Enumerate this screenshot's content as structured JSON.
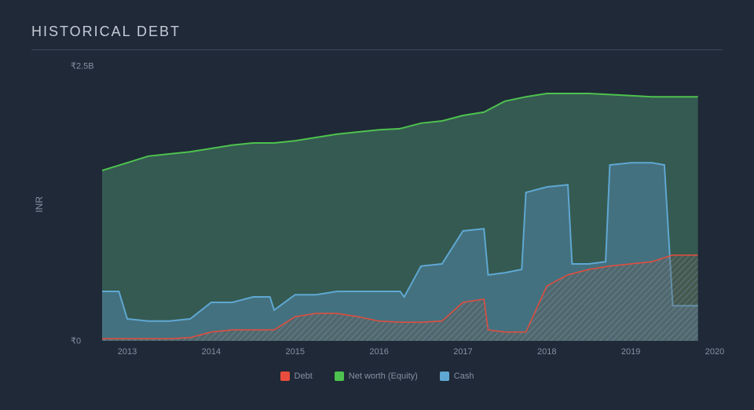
{
  "title": "HISTORICAL DEBT",
  "chart": {
    "type": "area",
    "background_color": "#1f2937",
    "grid_color": "#3d4a5e",
    "title_color": "#c4cbd6",
    "axis_text_color": "#8590a4",
    "title_fontsize": 18,
    "letter_spacing": 2,
    "y_label": "INR",
    "y_ticks": [
      {
        "value": 0,
        "label": "₹0"
      },
      {
        "value": 2.5,
        "label": "₹2.5B"
      }
    ],
    "ylim": [
      0,
      2.5
    ],
    "x_ticks": [
      2013,
      2014,
      2015,
      2016,
      2017,
      2018,
      2019,
      2020
    ],
    "xlim": [
      2012.7,
      2020
    ],
    "series": [
      {
        "name": "Net worth (Equity)",
        "stroke": "#4ec24e",
        "fill": "#3a6357",
        "fill_opacity": 0.85,
        "hatch": false,
        "line_width": 2,
        "data": [
          [
            2012.7,
            1.55
          ],
          [
            2013.0,
            1.62
          ],
          [
            2013.25,
            1.68
          ],
          [
            2013.5,
            1.7
          ],
          [
            2013.75,
            1.72
          ],
          [
            2014.0,
            1.75
          ],
          [
            2014.25,
            1.78
          ],
          [
            2014.5,
            1.8
          ],
          [
            2014.75,
            1.8
          ],
          [
            2015.0,
            1.82
          ],
          [
            2015.25,
            1.85
          ],
          [
            2015.5,
            1.88
          ],
          [
            2015.75,
            1.9
          ],
          [
            2016.0,
            1.92
          ],
          [
            2016.25,
            1.93
          ],
          [
            2016.5,
            1.98
          ],
          [
            2016.75,
            2.0
          ],
          [
            2017.0,
            2.05
          ],
          [
            2017.25,
            2.08
          ],
          [
            2017.5,
            2.18
          ],
          [
            2017.75,
            2.22
          ],
          [
            2018.0,
            2.25
          ],
          [
            2018.25,
            2.25
          ],
          [
            2018.5,
            2.25
          ],
          [
            2018.75,
            2.24
          ],
          [
            2019.0,
            2.23
          ],
          [
            2019.25,
            2.22
          ],
          [
            2019.5,
            2.22
          ],
          [
            2019.75,
            2.22
          ],
          [
            2019.8,
            2.22
          ]
        ]
      },
      {
        "name": "Cash",
        "stroke": "#5fa8d3",
        "fill": "#4a7a8f",
        "fill_opacity": 0.75,
        "hatch": false,
        "line_width": 2,
        "data": [
          [
            2012.7,
            0.45
          ],
          [
            2012.9,
            0.45
          ],
          [
            2013.0,
            0.2
          ],
          [
            2013.25,
            0.18
          ],
          [
            2013.5,
            0.18
          ],
          [
            2013.75,
            0.2
          ],
          [
            2014.0,
            0.35
          ],
          [
            2014.25,
            0.35
          ],
          [
            2014.5,
            0.4
          ],
          [
            2014.7,
            0.4
          ],
          [
            2014.75,
            0.28
          ],
          [
            2015.0,
            0.42
          ],
          [
            2015.25,
            0.42
          ],
          [
            2015.5,
            0.45
          ],
          [
            2015.75,
            0.45
          ],
          [
            2016.0,
            0.45
          ],
          [
            2016.25,
            0.45
          ],
          [
            2016.3,
            0.4
          ],
          [
            2016.5,
            0.68
          ],
          [
            2016.75,
            0.7
          ],
          [
            2017.0,
            1.0
          ],
          [
            2017.25,
            1.02
          ],
          [
            2017.3,
            0.6
          ],
          [
            2017.5,
            0.62
          ],
          [
            2017.7,
            0.65
          ],
          [
            2017.75,
            1.35
          ],
          [
            2018.0,
            1.4
          ],
          [
            2018.25,
            1.42
          ],
          [
            2018.3,
            0.7
          ],
          [
            2018.5,
            0.7
          ],
          [
            2018.7,
            0.72
          ],
          [
            2018.75,
            1.6
          ],
          [
            2019.0,
            1.62
          ],
          [
            2019.25,
            1.62
          ],
          [
            2019.4,
            1.6
          ],
          [
            2019.5,
            0.32
          ],
          [
            2019.75,
            0.32
          ],
          [
            2019.8,
            0.32
          ]
        ]
      },
      {
        "name": "Debt",
        "stroke": "#e84c3d",
        "fill": "#7a5a4a",
        "fill_opacity": 0.6,
        "hatch": true,
        "hatch_color": "#5a6a7a",
        "line_width": 1.5,
        "data": [
          [
            2012.7,
            0.02
          ],
          [
            2013.0,
            0.02
          ],
          [
            2013.5,
            0.02
          ],
          [
            2013.75,
            0.03
          ],
          [
            2014.0,
            0.08
          ],
          [
            2014.25,
            0.1
          ],
          [
            2014.5,
            0.1
          ],
          [
            2014.75,
            0.1
          ],
          [
            2015.0,
            0.22
          ],
          [
            2015.25,
            0.25
          ],
          [
            2015.5,
            0.25
          ],
          [
            2015.75,
            0.22
          ],
          [
            2016.0,
            0.18
          ],
          [
            2016.25,
            0.17
          ],
          [
            2016.5,
            0.17
          ],
          [
            2016.75,
            0.18
          ],
          [
            2017.0,
            0.35
          ],
          [
            2017.25,
            0.38
          ],
          [
            2017.3,
            0.1
          ],
          [
            2017.5,
            0.08
          ],
          [
            2017.75,
            0.08
          ],
          [
            2018.0,
            0.5
          ],
          [
            2018.25,
            0.6
          ],
          [
            2018.5,
            0.65
          ],
          [
            2018.75,
            0.68
          ],
          [
            2019.0,
            0.7
          ],
          [
            2019.25,
            0.72
          ],
          [
            2019.5,
            0.78
          ],
          [
            2019.75,
            0.78
          ],
          [
            2019.8,
            0.78
          ]
        ]
      }
    ],
    "legend": [
      {
        "label": "Debt",
        "color": "#e84c3d"
      },
      {
        "label": "Net worth (Equity)",
        "color": "#4ec24e"
      },
      {
        "label": "Cash",
        "color": "#5fa8d3"
      }
    ]
  }
}
